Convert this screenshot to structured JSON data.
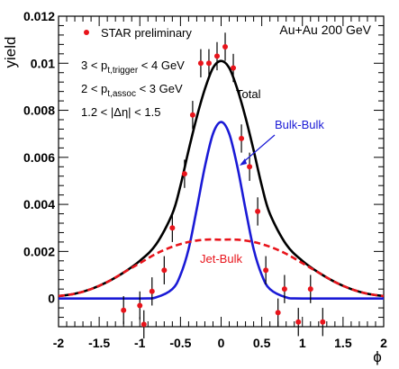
{
  "chart_data": {
    "type": "line",
    "title": "",
    "xlabel": "ϕ",
    "ylabel": "yield",
    "xlim": [
      -2,
      2
    ],
    "ylim": [
      -0.0012,
      0.012
    ],
    "x_ticks": [
      "-2",
      "-1.5",
      "-1",
      "-0.5",
      "0",
      "0.5",
      "1",
      "1.5",
      "2"
    ],
    "y_ticks": [
      "0",
      "0.002",
      "0.004",
      "0.006",
      "0.008",
      "0.01",
      "0.012"
    ],
    "annotations": {
      "system": "Au+Au 200 GeV",
      "cut1": "3 < p",
      "cut1_sub": "t,trigger",
      "cut1_tail": " < 4 GeV",
      "cut2": "2 < p",
      "cut2_sub": "t,assoc",
      "cut2_tail": " < 3 GeV",
      "cut3": "1.2 < |Δη| < 1.5"
    },
    "legend": {
      "placement": "top-left",
      "data_label": "STAR preliminary",
      "marker_color": "#e8141b"
    },
    "series": [
      {
        "name": "STAR preliminary",
        "kind": "points",
        "color": "#e8141b",
        "x": [
          -1.2,
          -1.0,
          -0.95,
          -0.85,
          -0.7,
          -0.6,
          -0.45,
          -0.35,
          -0.25,
          -0.15,
          -0.05,
          0.05,
          0.15,
          0.25,
          0.35,
          0.45,
          0.55,
          0.7,
          0.78,
          0.95,
          1.1,
          1.25
        ],
        "y": [
          -0.0005,
          -0.0003,
          -0.0011,
          0.0003,
          0.0012,
          0.003,
          0.0053,
          0.0078,
          0.01,
          0.01,
          0.0103,
          0.0107,
          0.0098,
          0.0068,
          0.0056,
          0.0037,
          0.0012,
          -0.0006,
          0.0004,
          -0.001,
          0.0004,
          -0.001
        ],
        "err": [
          0.0006,
          0.0006,
          0.0006,
          0.0006,
          0.0006,
          0.0006,
          0.0006,
          0.0006,
          0.0006,
          0.0006,
          0.0006,
          0.0006,
          0.0006,
          0.0006,
          0.0006,
          0.0006,
          0.0006,
          0.0006,
          0.0006,
          0.0006,
          0.0006,
          0.0006
        ]
      },
      {
        "name": "Total",
        "kind": "line",
        "color": "#000000",
        "x": [
          -2.0,
          -1.8,
          -1.6,
          -1.4,
          -1.2,
          -1.0,
          -0.8,
          -0.6,
          -0.5,
          -0.4,
          -0.3,
          -0.2,
          -0.1,
          0.0,
          0.1,
          0.2,
          0.3,
          0.4,
          0.5,
          0.6,
          0.8,
          1.0,
          1.2,
          1.4,
          1.6,
          1.8,
          2.0
        ],
        "y": [
          0.0001,
          0.0002,
          0.0004,
          0.0007,
          0.0011,
          0.0016,
          0.0023,
          0.0036,
          0.0048,
          0.0063,
          0.0077,
          0.0089,
          0.0098,
          0.0101,
          0.0098,
          0.0089,
          0.0077,
          0.0063,
          0.0048,
          0.0036,
          0.0023,
          0.0016,
          0.0011,
          0.0007,
          0.0004,
          0.0002,
          0.0001
        ]
      },
      {
        "name": "Bulk-Bulk",
        "kind": "line",
        "color": "#1a1ad6",
        "x": [
          -2.0,
          -1.0,
          -0.8,
          -0.6,
          -0.5,
          -0.4,
          -0.3,
          -0.2,
          -0.1,
          0.0,
          0.1,
          0.2,
          0.3,
          0.4,
          0.5,
          0.6,
          0.8,
          1.0,
          2.0
        ],
        "y": [
          0.0,
          0.0,
          5e-05,
          0.0004,
          0.001,
          0.0021,
          0.0038,
          0.0056,
          0.007,
          0.0075,
          0.007,
          0.0056,
          0.0038,
          0.0021,
          0.001,
          0.0004,
          5e-05,
          0.0,
          0.0
        ]
      },
      {
        "name": "Jet-Bulk",
        "kind": "line",
        "dashed": true,
        "color": "#e8141b",
        "x": [
          -2.0,
          -1.8,
          -1.6,
          -1.4,
          -1.2,
          -1.0,
          -0.8,
          -0.6,
          -0.4,
          -0.2,
          0.0,
          0.2,
          0.4,
          0.6,
          0.8,
          1.0,
          1.2,
          1.4,
          1.6,
          1.8,
          2.0
        ],
        "y": [
          0.0001,
          0.0002,
          0.0004,
          0.0007,
          0.0011,
          0.0015,
          0.0019,
          0.0022,
          0.0024,
          0.0025,
          0.0025,
          0.0025,
          0.0024,
          0.0022,
          0.0019,
          0.0015,
          0.0011,
          0.0007,
          0.0004,
          0.0002,
          0.0001
        ]
      }
    ]
  }
}
